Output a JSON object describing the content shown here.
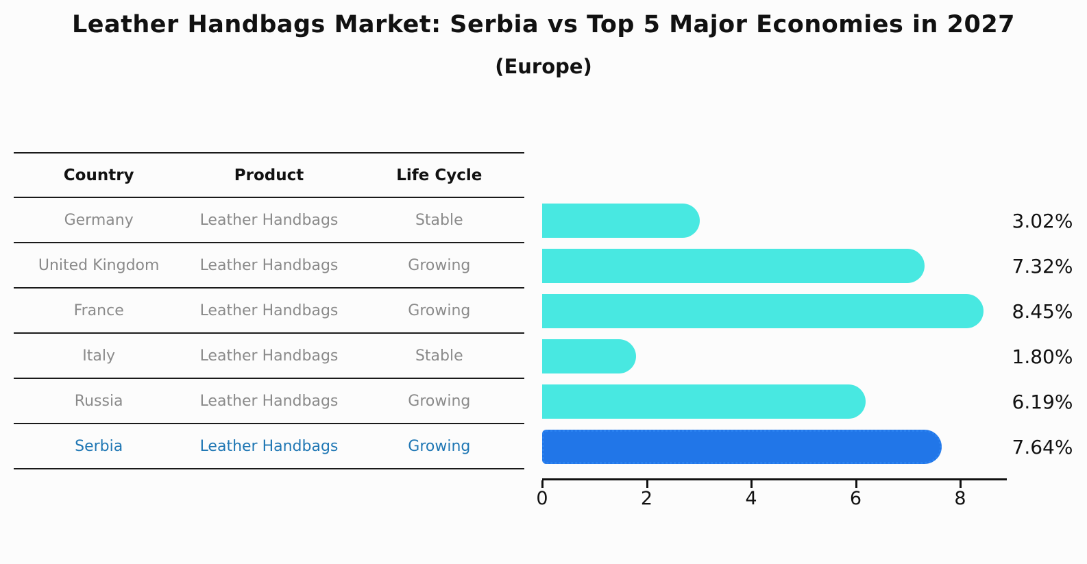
{
  "title": "Leather Handbags Market: Serbia vs Top 5 Major Economies in 2027",
  "subtitle": "(Europe)",
  "table": {
    "headers": [
      "Country",
      "Product",
      "Life Cycle"
    ],
    "rows": [
      {
        "country": "Germany",
        "product": "Leather Handbags",
        "life_cycle": "Stable",
        "value_label": "3.02%",
        "highlight": false
      },
      {
        "country": "United Kingdom",
        "product": "Leather Handbags",
        "life_cycle": "Growing",
        "value_label": "7.32%",
        "highlight": false
      },
      {
        "country": "France",
        "product": "Leather Handbags",
        "life_cycle": "Growing",
        "value_label": "8.45%",
        "highlight": false
      },
      {
        "country": "Italy",
        "product": "Leather Handbags",
        "life_cycle": "Stable",
        "value_label": "1.80%",
        "highlight": false
      },
      {
        "country": "Russia",
        "product": "Leather Handbags",
        "life_cycle": "Growing",
        "value_label": "6.19%",
        "highlight": false
      },
      {
        "country": "Serbia",
        "product": "Leather Handbags",
        "life_cycle": "Growing",
        "value_label": "7.64%",
        "highlight": true
      }
    ]
  },
  "chart_data": {
    "type": "bar",
    "orientation": "horizontal",
    "title": "Leather Handbags Market: Serbia vs Top 5 Major Economies in 2027 (Europe)",
    "categories": [
      "Germany",
      "United Kingdom",
      "France",
      "Italy",
      "Russia",
      "Serbia"
    ],
    "values": [
      3.02,
      7.32,
      8.45,
      1.8,
      6.19,
      7.64
    ],
    "value_labels": [
      "3.02%",
      "7.32%",
      "8.45%",
      "1.80%",
      "6.19%",
      "7.64%"
    ],
    "highlight_category": "Serbia",
    "xlabel": "",
    "ylabel": "",
    "xlim": [
      0,
      8.9
    ],
    "xticks": [
      0,
      2,
      4,
      6,
      8
    ],
    "grid": false,
    "legend": null,
    "colors": {
      "default_bar": "#48E8E1",
      "highlight_bar": "#2176E8",
      "highlight_text": "#1F77B4",
      "row_text": "#8a8a8a",
      "axis": "#111111"
    }
  }
}
